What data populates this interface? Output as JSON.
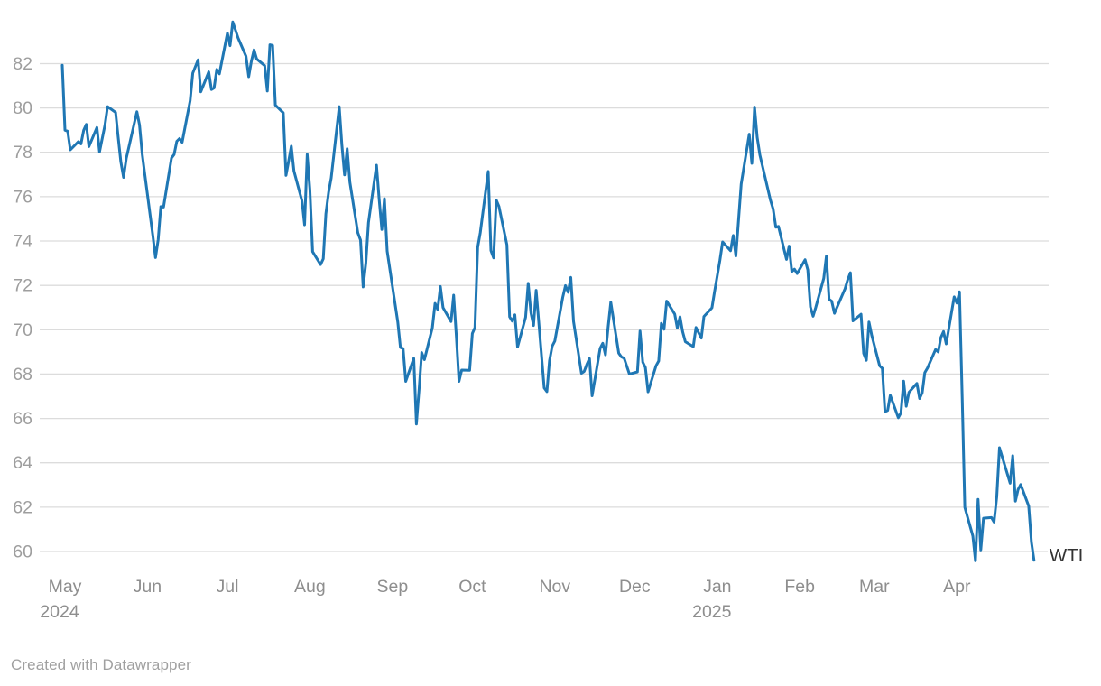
{
  "chart_data": {
    "type": "line",
    "title": "",
    "series": [
      {
        "name": "WTI",
        "points": [
          [
            "2024-04-30",
            81.93
          ],
          [
            "2024-05-01",
            79.0
          ],
          [
            "2024-05-02",
            78.95
          ],
          [
            "2024-05-03",
            78.11
          ],
          [
            "2024-05-06",
            78.48
          ],
          [
            "2024-05-07",
            78.38
          ],
          [
            "2024-05-08",
            78.99
          ],
          [
            "2024-05-09",
            79.26
          ],
          [
            "2024-05-10",
            78.26
          ],
          [
            "2024-05-13",
            79.12
          ],
          [
            "2024-05-14",
            78.02
          ],
          [
            "2024-05-15",
            78.63
          ],
          [
            "2024-05-16",
            79.23
          ],
          [
            "2024-05-17",
            80.06
          ],
          [
            "2024-05-20",
            79.8
          ],
          [
            "2024-05-21",
            78.66
          ],
          [
            "2024-05-22",
            77.57
          ],
          [
            "2024-05-23",
            76.87
          ],
          [
            "2024-05-24",
            77.72
          ],
          [
            "2024-05-28",
            79.83
          ],
          [
            "2024-05-29",
            79.23
          ],
          [
            "2024-05-30",
            77.91
          ],
          [
            "2024-05-31",
            76.99
          ],
          [
            "2024-06-03",
            74.22
          ],
          [
            "2024-06-04",
            73.25
          ],
          [
            "2024-06-05",
            74.07
          ],
          [
            "2024-06-06",
            75.55
          ],
          [
            "2024-06-07",
            75.53
          ],
          [
            "2024-06-10",
            77.74
          ],
          [
            "2024-06-11",
            77.9
          ],
          [
            "2024-06-12",
            78.5
          ],
          [
            "2024-06-13",
            78.62
          ],
          [
            "2024-06-14",
            78.45
          ],
          [
            "2024-06-17",
            80.33
          ],
          [
            "2024-06-18",
            81.57
          ],
          [
            "2024-06-20",
            82.17
          ],
          [
            "2024-06-21",
            80.73
          ],
          [
            "2024-06-24",
            81.63
          ],
          [
            "2024-06-25",
            80.83
          ],
          [
            "2024-06-26",
            80.9
          ],
          [
            "2024-06-27",
            81.74
          ],
          [
            "2024-06-28",
            81.54
          ],
          [
            "2024-07-01",
            83.38
          ],
          [
            "2024-07-02",
            82.81
          ],
          [
            "2024-07-03",
            83.88
          ],
          [
            "2024-07-05",
            83.16
          ],
          [
            "2024-07-08",
            82.33
          ],
          [
            "2024-07-09",
            81.41
          ],
          [
            "2024-07-10",
            82.1
          ],
          [
            "2024-07-11",
            82.62
          ],
          [
            "2024-07-12",
            82.21
          ],
          [
            "2024-07-15",
            81.91
          ],
          [
            "2024-07-16",
            80.76
          ],
          [
            "2024-07-17",
            82.85
          ],
          [
            "2024-07-18",
            82.82
          ],
          [
            "2024-07-19",
            80.13
          ],
          [
            "2024-07-22",
            79.78
          ],
          [
            "2024-07-23",
            76.96
          ],
          [
            "2024-07-24",
            77.59
          ],
          [
            "2024-07-25",
            78.28
          ],
          [
            "2024-07-26",
            77.16
          ],
          [
            "2024-07-29",
            75.81
          ],
          [
            "2024-07-30",
            74.73
          ],
          [
            "2024-07-31",
            77.91
          ],
          [
            "2024-08-01",
            76.31
          ],
          [
            "2024-08-02",
            73.52
          ],
          [
            "2024-08-05",
            72.94
          ],
          [
            "2024-08-06",
            73.2
          ],
          [
            "2024-08-07",
            75.23
          ],
          [
            "2024-08-08",
            76.19
          ],
          [
            "2024-08-09",
            76.84
          ],
          [
            "2024-08-12",
            80.06
          ],
          [
            "2024-08-13",
            78.35
          ],
          [
            "2024-08-14",
            76.98
          ],
          [
            "2024-08-15",
            78.16
          ],
          [
            "2024-08-16",
            76.65
          ],
          [
            "2024-08-19",
            74.37
          ],
          [
            "2024-08-20",
            74.04
          ],
          [
            "2024-08-21",
            71.93
          ],
          [
            "2024-08-22",
            73.01
          ],
          [
            "2024-08-23",
            74.83
          ],
          [
            "2024-08-26",
            77.42
          ],
          [
            "2024-08-27",
            75.91
          ],
          [
            "2024-08-28",
            74.52
          ],
          [
            "2024-08-29",
            75.91
          ],
          [
            "2024-08-30",
            73.55
          ],
          [
            "2024-09-03",
            70.34
          ],
          [
            "2024-09-04",
            69.2
          ],
          [
            "2024-09-05",
            69.15
          ],
          [
            "2024-09-06",
            67.67
          ],
          [
            "2024-09-09",
            68.71
          ],
          [
            "2024-09-10",
            65.75
          ],
          [
            "2024-09-11",
            67.31
          ],
          [
            "2024-09-12",
            68.97
          ],
          [
            "2024-09-13",
            68.65
          ],
          [
            "2024-09-16",
            70.09
          ],
          [
            "2024-09-17",
            71.19
          ],
          [
            "2024-09-18",
            70.91
          ],
          [
            "2024-09-19",
            71.95
          ],
          [
            "2024-09-20",
            71.0
          ],
          [
            "2024-09-23",
            70.37
          ],
          [
            "2024-09-24",
            71.56
          ],
          [
            "2024-09-25",
            69.69
          ],
          [
            "2024-09-26",
            67.67
          ],
          [
            "2024-09-27",
            68.18
          ],
          [
            "2024-09-30",
            68.17
          ],
          [
            "2024-10-01",
            69.83
          ],
          [
            "2024-10-02",
            70.1
          ],
          [
            "2024-10-03",
            73.71
          ],
          [
            "2024-10-04",
            74.38
          ],
          [
            "2024-10-07",
            77.14
          ],
          [
            "2024-10-08",
            73.57
          ],
          [
            "2024-10-09",
            73.24
          ],
          [
            "2024-10-10",
            75.85
          ],
          [
            "2024-10-11",
            75.56
          ],
          [
            "2024-10-14",
            73.83
          ],
          [
            "2024-10-15",
            70.58
          ],
          [
            "2024-10-16",
            70.39
          ],
          [
            "2024-10-17",
            70.67
          ],
          [
            "2024-10-18",
            69.22
          ],
          [
            "2024-10-21",
            70.56
          ],
          [
            "2024-10-22",
            72.09
          ],
          [
            "2024-10-23",
            70.77
          ],
          [
            "2024-10-24",
            70.19
          ],
          [
            "2024-10-25",
            71.78
          ],
          [
            "2024-10-28",
            67.38
          ],
          [
            "2024-10-29",
            67.21
          ],
          [
            "2024-10-30",
            68.61
          ],
          [
            "2024-10-31",
            69.26
          ],
          [
            "2024-11-01",
            69.49
          ],
          [
            "2024-11-04",
            71.47
          ],
          [
            "2024-11-05",
            71.99
          ],
          [
            "2024-11-06",
            71.69
          ],
          [
            "2024-11-07",
            72.36
          ],
          [
            "2024-11-08",
            70.38
          ],
          [
            "2024-11-11",
            68.04
          ],
          [
            "2024-11-12",
            68.12
          ],
          [
            "2024-11-13",
            68.43
          ],
          [
            "2024-11-14",
            68.7
          ],
          [
            "2024-11-15",
            67.02
          ],
          [
            "2024-11-18",
            69.16
          ],
          [
            "2024-11-19",
            69.39
          ],
          [
            "2024-11-20",
            68.87
          ],
          [
            "2024-11-21",
            70.1
          ],
          [
            "2024-11-22",
            71.24
          ],
          [
            "2024-11-25",
            68.94
          ],
          [
            "2024-11-26",
            68.77
          ],
          [
            "2024-11-27",
            68.72
          ],
          [
            "2024-11-29",
            68.0
          ],
          [
            "2024-12-02",
            68.1
          ],
          [
            "2024-12-03",
            69.94
          ],
          [
            "2024-12-04",
            68.54
          ],
          [
            "2024-12-05",
            68.3
          ],
          [
            "2024-12-06",
            67.2
          ],
          [
            "2024-12-09",
            68.37
          ],
          [
            "2024-12-10",
            68.59
          ],
          [
            "2024-12-11",
            70.29
          ],
          [
            "2024-12-12",
            70.02
          ],
          [
            "2024-12-13",
            71.29
          ],
          [
            "2024-12-16",
            70.71
          ],
          [
            "2024-12-17",
            70.08
          ],
          [
            "2024-12-18",
            70.58
          ],
          [
            "2024-12-19",
            69.91
          ],
          [
            "2024-12-20",
            69.46
          ],
          [
            "2024-12-23",
            69.24
          ],
          [
            "2024-12-24",
            70.1
          ],
          [
            "2024-12-26",
            69.62
          ],
          [
            "2024-12-27",
            70.6
          ],
          [
            "2024-12-30",
            70.99
          ],
          [
            "2024-12-31",
            71.72
          ],
          [
            "2025-01-02",
            73.13
          ],
          [
            "2025-01-03",
            73.96
          ],
          [
            "2025-01-06",
            73.56
          ],
          [
            "2025-01-07",
            74.25
          ],
          [
            "2025-01-08",
            73.32
          ],
          [
            "2025-01-10",
            76.57
          ],
          [
            "2025-01-13",
            78.82
          ],
          [
            "2025-01-14",
            77.5
          ],
          [
            "2025-01-15",
            80.04
          ],
          [
            "2025-01-16",
            78.68
          ],
          [
            "2025-01-17",
            77.88
          ],
          [
            "2025-01-21",
            75.83
          ],
          [
            "2025-01-22",
            75.44
          ],
          [
            "2025-01-23",
            74.62
          ],
          [
            "2025-01-24",
            74.66
          ],
          [
            "2025-01-27",
            73.17
          ],
          [
            "2025-01-28",
            73.77
          ],
          [
            "2025-01-29",
            72.62
          ],
          [
            "2025-01-30",
            72.73
          ],
          [
            "2025-01-31",
            72.53
          ],
          [
            "2025-02-03",
            73.16
          ],
          [
            "2025-02-04",
            72.7
          ],
          [
            "2025-02-05",
            71.03
          ],
          [
            "2025-02-06",
            70.61
          ],
          [
            "2025-02-07",
            71.0
          ],
          [
            "2025-02-10",
            72.32
          ],
          [
            "2025-02-11",
            73.32
          ],
          [
            "2025-02-12",
            71.37
          ],
          [
            "2025-02-13",
            71.29
          ],
          [
            "2025-02-14",
            70.74
          ],
          [
            "2025-02-18",
            71.85
          ],
          [
            "2025-02-19",
            72.25
          ],
          [
            "2025-02-20",
            72.57
          ],
          [
            "2025-02-21",
            70.4
          ],
          [
            "2025-02-24",
            70.7
          ],
          [
            "2025-02-25",
            68.93
          ],
          [
            "2025-02-26",
            68.62
          ],
          [
            "2025-02-27",
            70.35
          ],
          [
            "2025-02-28",
            69.76
          ],
          [
            "2025-03-03",
            68.37
          ],
          [
            "2025-03-04",
            68.26
          ],
          [
            "2025-03-05",
            66.31
          ],
          [
            "2025-03-06",
            66.36
          ],
          [
            "2025-03-07",
            67.04
          ],
          [
            "2025-03-10",
            66.03
          ],
          [
            "2025-03-11",
            66.25
          ],
          [
            "2025-03-12",
            67.68
          ],
          [
            "2025-03-13",
            66.55
          ],
          [
            "2025-03-14",
            67.18
          ],
          [
            "2025-03-17",
            67.58
          ],
          [
            "2025-03-18",
            66.9
          ],
          [
            "2025-03-19",
            67.16
          ],
          [
            "2025-03-20",
            68.07
          ],
          [
            "2025-03-21",
            68.28
          ],
          [
            "2025-03-24",
            69.11
          ],
          [
            "2025-03-25",
            69.0
          ],
          [
            "2025-03-26",
            69.65
          ],
          [
            "2025-03-27",
            69.92
          ],
          [
            "2025-03-28",
            69.36
          ],
          [
            "2025-03-31",
            71.48
          ],
          [
            "2025-04-01",
            71.2
          ],
          [
            "2025-04-02",
            71.71
          ],
          [
            "2025-04-03",
            66.95
          ],
          [
            "2025-04-04",
            61.99
          ],
          [
            "2025-04-07",
            60.7
          ],
          [
            "2025-04-08",
            59.58
          ],
          [
            "2025-04-09",
            62.35
          ],
          [
            "2025-04-10",
            60.07
          ],
          [
            "2025-04-11",
            61.5
          ],
          [
            "2025-04-14",
            61.53
          ],
          [
            "2025-04-15",
            61.33
          ],
          [
            "2025-04-16",
            62.47
          ],
          [
            "2025-04-17",
            64.68
          ],
          [
            "2025-04-21",
            63.08
          ],
          [
            "2025-04-22",
            64.32
          ],
          [
            "2025-04-23",
            62.27
          ],
          [
            "2025-04-24",
            62.79
          ],
          [
            "2025-04-25",
            63.02
          ],
          [
            "2025-04-28",
            62.05
          ],
          [
            "2025-04-29",
            60.42
          ],
          [
            "2025-04-30",
            59.6
          ]
        ]
      }
    ],
    "series_end_label": "WTI",
    "y_ticks": [
      60,
      62,
      64,
      66,
      68,
      70,
      72,
      74,
      76,
      78,
      80,
      82
    ],
    "ylim": [
      58.8,
      84.4
    ],
    "x_ticks": [
      {
        "label": "May",
        "year": "2024",
        "date": "2024-05-01"
      },
      {
        "label": "Jun",
        "date": "2024-06-01"
      },
      {
        "label": "Jul",
        "date": "2024-07-01"
      },
      {
        "label": "Aug",
        "date": "2024-08-01"
      },
      {
        "label": "Sep",
        "date": "2024-09-01"
      },
      {
        "label": "Oct",
        "date": "2024-10-01"
      },
      {
        "label": "Nov",
        "date": "2024-11-01"
      },
      {
        "label": "Dec",
        "date": "2024-12-01"
      },
      {
        "label": "Jan",
        "year": "2025",
        "date": "2025-01-01"
      },
      {
        "label": "Feb",
        "date": "2025-02-01"
      },
      {
        "label": "Mar",
        "date": "2025-03-01"
      },
      {
        "label": "Apr",
        "date": "2025-04-01"
      }
    ],
    "grid": true,
    "legend_position": "end-of-line"
  },
  "colors": {
    "line": "#1f77b4",
    "grid": "#dcdcdc",
    "y_tick_label": "#9e9e9e",
    "x_tick_label": "#8e8e8e",
    "series_label": "#333333",
    "footer": "#a0a0a0",
    "background": "#ffffff"
  },
  "footer": {
    "credit": "Created with Datawrapper"
  }
}
